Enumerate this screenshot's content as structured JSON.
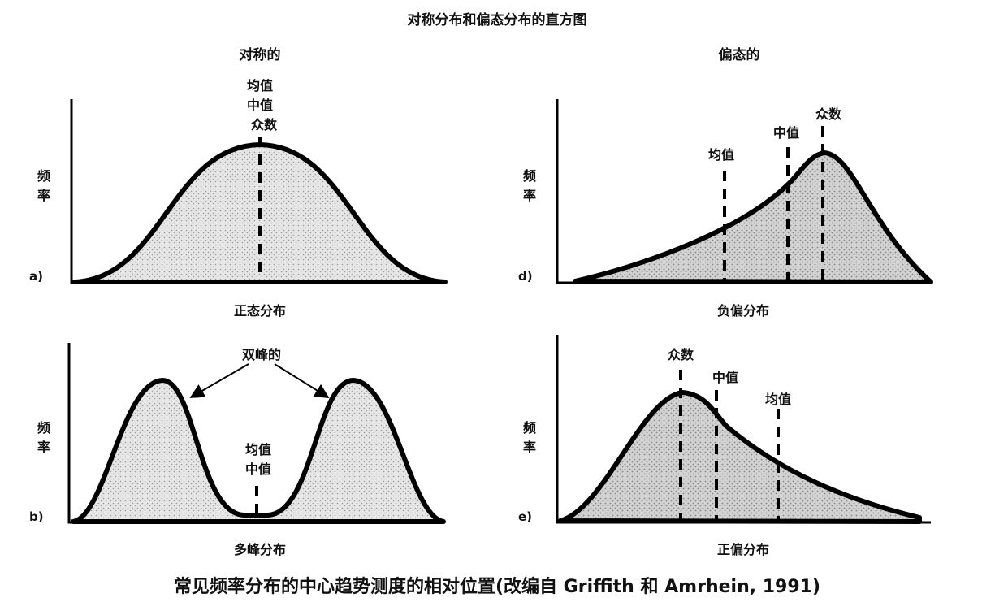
{
  "title": "对称分布和偏态分布的直方图",
  "section_symmetric": "对称的",
  "section_skewed": "偏态的",
  "axis_label_line1": "频",
  "axis_label_line2": "率",
  "panel_a": {
    "letter": "a)",
    "mean": "均值",
    "median": "中值",
    "mode": "众数",
    "name": "正态分布"
  },
  "panel_b": {
    "letter": "b)",
    "bimodal": "双峰的",
    "mean": "均值",
    "median": "中值",
    "name": "多峰分布"
  },
  "panel_d": {
    "letter": "d)",
    "mean": "均值",
    "median": "中值",
    "mode": "众数",
    "name": "负偏分布"
  },
  "panel_e": {
    "letter": "e)",
    "mode": "众数",
    "median": "中值",
    "mean": "均值",
    "name": "正偏分布"
  },
  "caption": "常见频率分布的中心趋势测度的相对位置(改编自 Griffith 和 Amrhein, 1991)"
}
